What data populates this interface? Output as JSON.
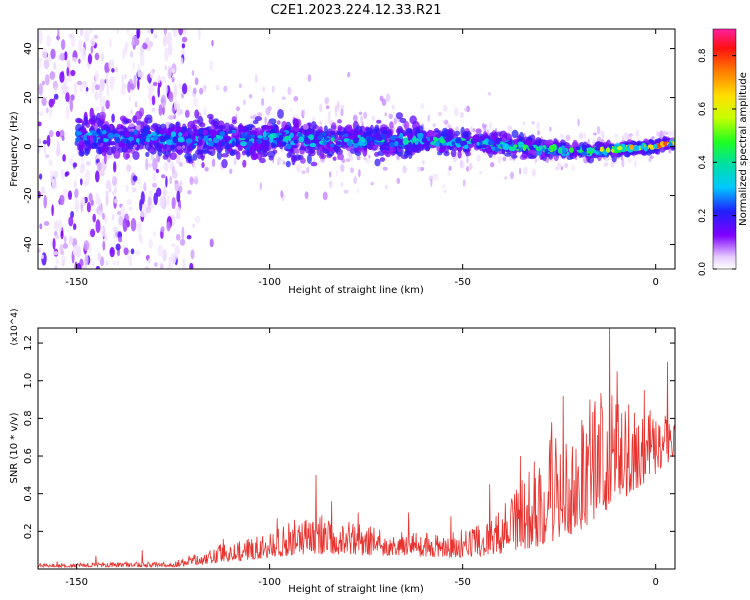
{
  "figure": {
    "title": "C2E1.2023.224.12.33.R21"
  },
  "chart_data": [
    {
      "type": "heatmap",
      "title": "C2E1.2023.224.12.33.R21",
      "xlabel": "Height of straight line (km)",
      "ylabel": "Frequency (Hz)",
      "xlim": [
        -160,
        5
      ],
      "ylim": [
        -50,
        48
      ],
      "x_ticks": [
        -150,
        -100,
        -50,
        0
      ],
      "y_ticks": [
        -40,
        -20,
        0,
        20,
        40
      ],
      "colorbar": {
        "label": "Normalized spectral amplitude",
        "range": [
          0,
          0.9
        ],
        "ticks": [
          "0.0",
          "0.2",
          "0.4",
          "0.6",
          "0.8"
        ],
        "colormap": "rainbow (violet → blue → cyan → green → yellow → orange → red → magenta)"
      },
      "signal_band": {
        "description": "energy concentrated near 0 Hz, band narrowing and amplitude increasing toward 0 km",
        "center_hz": [
          {
            "x": -150,
            "y": 4
          },
          {
            "x": -100,
            "y": 3
          },
          {
            "x": -50,
            "y": 2
          },
          {
            "x": -20,
            "y": -2
          },
          {
            "x": 0,
            "y": 0
          },
          {
            "x": 5,
            "y": 2
          }
        ],
        "halfwidth_hz": [
          {
            "x": -150,
            "y": 8
          },
          {
            "x": -100,
            "y": 9
          },
          {
            "x": -50,
            "y": 6
          },
          {
            "x": -20,
            "y": 3
          },
          {
            "x": 5,
            "y": 2
          }
        ],
        "peak_amplitude": [
          {
            "x": -150,
            "y": 0.35
          },
          {
            "x": -110,
            "y": 0.4
          },
          {
            "x": -50,
            "y": 0.45
          },
          {
            "x": -20,
            "y": 0.6
          },
          {
            "x": 0,
            "y": 0.85
          },
          {
            "x": 5,
            "y": 0.9
          }
        ],
        "noise_region_km": [
          -160,
          -120
        ]
      }
    },
    {
      "type": "line",
      "xlabel": "Height of straight line (km)",
      "ylabel": "SNR (10 * v/v)",
      "y_multiplier": "(x10^4)",
      "xlim": [
        -160,
        5
      ],
      "ylim": [
        0,
        1.28
      ],
      "x_ticks": [
        -150,
        -100,
        -50,
        0
      ],
      "y_ticks": [
        0.2,
        0.4,
        0.6,
        0.8,
        1.0,
        1.2
      ],
      "color": "#e8322e",
      "envelope": {
        "baseline": [
          {
            "x": -160,
            "y": 0.01
          },
          {
            "x": -125,
            "y": 0.01
          },
          {
            "x": -115,
            "y": 0.03
          },
          {
            "x": -100,
            "y": 0.06
          },
          {
            "x": -90,
            "y": 0.08
          },
          {
            "x": -70,
            "y": 0.07
          },
          {
            "x": -50,
            "y": 0.06
          },
          {
            "x": -40,
            "y": 0.08
          },
          {
            "x": -30,
            "y": 0.12
          },
          {
            "x": -20,
            "y": 0.2
          },
          {
            "x": -10,
            "y": 0.35
          },
          {
            "x": 0,
            "y": 0.5
          },
          {
            "x": 5,
            "y": 0.6
          }
        ],
        "typical_peak": [
          {
            "x": -160,
            "y": 0.03
          },
          {
            "x": -125,
            "y": 0.04
          },
          {
            "x": -115,
            "y": 0.12
          },
          {
            "x": -100,
            "y": 0.2
          },
          {
            "x": -90,
            "y": 0.3
          },
          {
            "x": -70,
            "y": 0.22
          },
          {
            "x": -55,
            "y": 0.18
          },
          {
            "x": -45,
            "y": 0.25
          },
          {
            "x": -35,
            "y": 0.5
          },
          {
            "x": -25,
            "y": 0.75
          },
          {
            "x": -15,
            "y": 0.95
          },
          {
            "x": 0,
            "y": 0.85
          },
          {
            "x": 5,
            "y": 0.9
          }
        ],
        "spikes": [
          {
            "x": -155,
            "y": 0.04
          },
          {
            "x": -145,
            "y": 0.07
          },
          {
            "x": -133,
            "y": 0.1
          },
          {
            "x": -112,
            "y": 0.16
          },
          {
            "x": -98,
            "y": 0.27
          },
          {
            "x": -88,
            "y": 0.5
          },
          {
            "x": -84,
            "y": 0.36
          },
          {
            "x": -77,
            "y": 0.3
          },
          {
            "x": -64,
            "y": 0.3
          },
          {
            "x": -53,
            "y": 0.28
          },
          {
            "x": -43,
            "y": 0.45
          },
          {
            "x": -35,
            "y": 0.6
          },
          {
            "x": -27,
            "y": 0.78
          },
          {
            "x": -24,
            "y": 0.92
          },
          {
            "x": -17,
            "y": 0.9
          },
          {
            "x": -12,
            "y": 1.28
          },
          {
            "x": -10,
            "y": 1.05
          },
          {
            "x": -3,
            "y": 0.95
          },
          {
            "x": 3,
            "y": 1.1
          }
        ]
      }
    }
  ]
}
